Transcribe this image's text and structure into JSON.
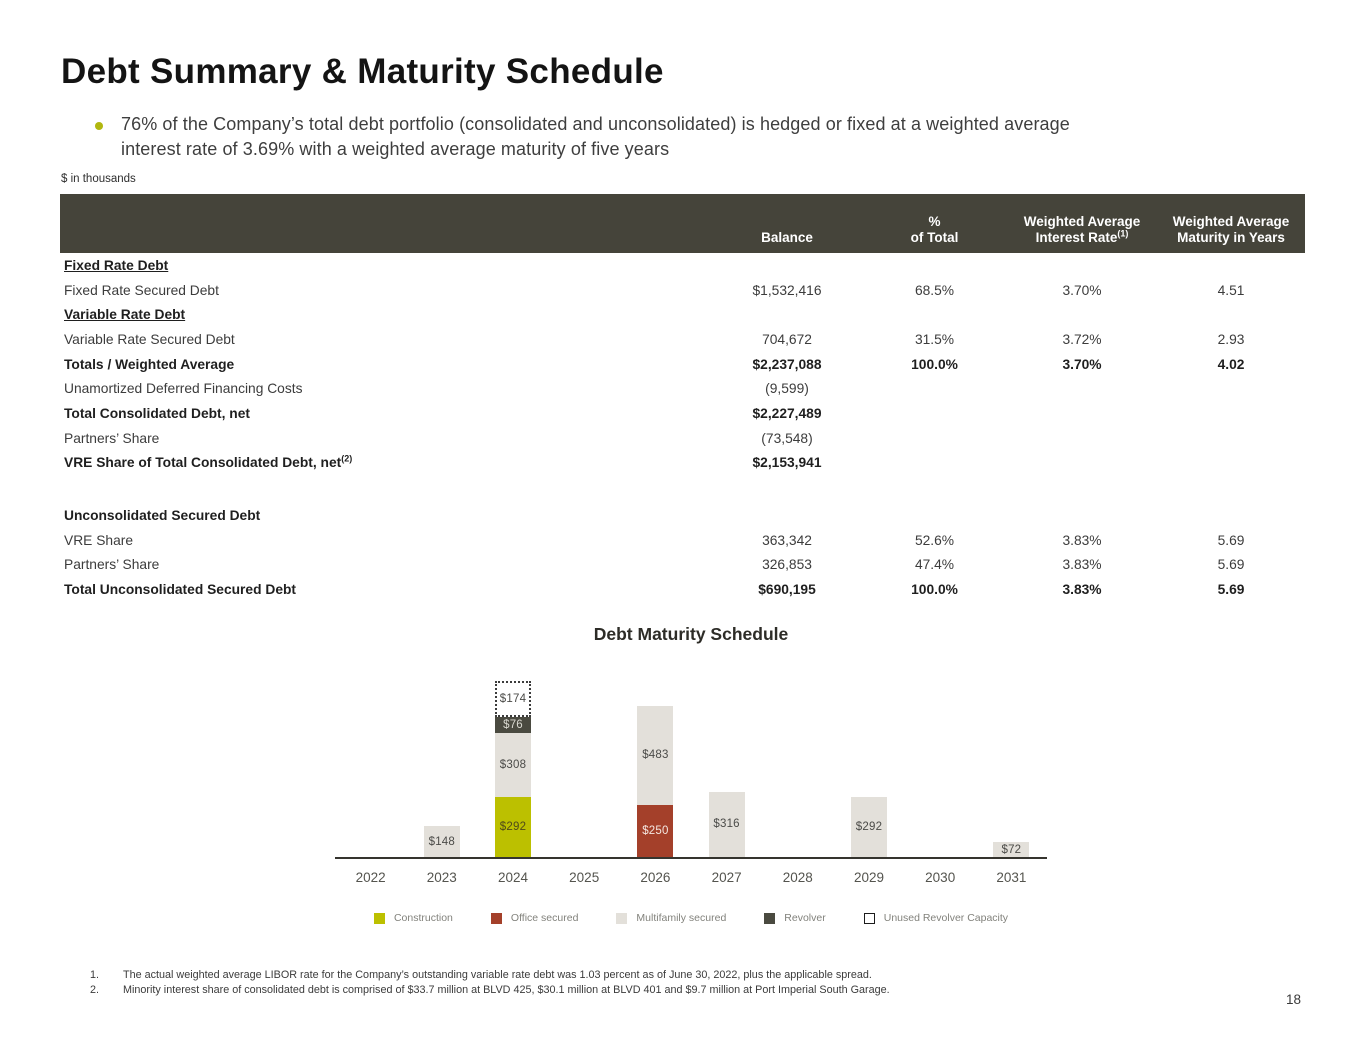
{
  "page": {
    "title": "Debt Summary & Maturity Schedule",
    "bullet_lines": [
      "76% of the Company’s total debt portfolio (consolidated and unconsolidated) is hedged or fixed at a weighted average",
      "interest rate of 3.69% with a weighted average maturity of five years"
    ],
    "bullet_color": "#b1b70f",
    "units_note": "$ in thousands",
    "page_number": "18",
    "footnotes": [
      {
        "num": "1.",
        "text": "The actual weighted average LIBOR rate for the Company’s outstanding variable rate debt was 1.03 percent as of June 30, 2022, plus the applicable spread."
      },
      {
        "num": "2.",
        "text": "Minority interest share of consolidated debt is comprised of $33.7 million at BLVD 425, $30.1 million at BLVD 401 and $9.7 million at Port Imperial South Garage."
      }
    ]
  },
  "table": {
    "header_bg_color": "#45443a",
    "header": {
      "balance": "Balance",
      "pct_line1": "%",
      "pct_line2": "of Total",
      "rate_line1": "Weighted Average",
      "rate_line2": "Interest Rate",
      "rate_sup": "(1)",
      "maturity_line1": "Weighted Average",
      "maturity_line2": "Maturity in Years"
    },
    "rows": [
      {
        "label": "Fixed Rate Debt",
        "style": "section"
      },
      {
        "label": "Fixed Rate Secured Debt",
        "balance": "$1,532,416",
        "pct": "68.5%",
        "rate": "3.70%",
        "maturity": "4.51",
        "style": "normal"
      },
      {
        "label": "Variable Rate Debt",
        "style": "section"
      },
      {
        "label": "Variable Rate Secured Debt",
        "balance": "704,672",
        "pct": "31.5%",
        "rate": "3.72%",
        "maturity": "2.93",
        "style": "normal"
      },
      {
        "label": "Totals / Weighted Average",
        "balance": "$2,237,088",
        "pct": "100.0%",
        "rate": "3.70%",
        "maturity": "4.02",
        "style": "bold"
      },
      {
        "label": "Unamortized Deferred Financing Costs",
        "balance": "(9,599)",
        "style": "normal"
      },
      {
        "label": "Total Consolidated Debt, net",
        "balance": "$2,227,489",
        "style": "bold"
      },
      {
        "label": "Partners’ Share",
        "balance": "(73,548)",
        "style": "normal"
      },
      {
        "label": "VRE Share of Total Consolidated Debt, net",
        "label_sup": "(2)",
        "balance": "$2,153,941",
        "style": "bold"
      },
      {
        "style": "spacer"
      },
      {
        "label": "Unconsolidated Secured Debt",
        "style": "bold"
      },
      {
        "label": "VRE Share",
        "balance": "363,342",
        "pct": "52.6%",
        "rate": "3.83%",
        "maturity": "5.69",
        "style": "normal"
      },
      {
        "label": "Partners’ Share",
        "balance": "326,853",
        "pct": "47.4%",
        "rate": "3.83%",
        "maturity": "5.69",
        "style": "normal"
      },
      {
        "label": "Total Unconsolidated Secured Debt",
        "balance": "$690,195",
        "pct": "100.0%",
        "rate": "3.83%",
        "maturity": "5.69",
        "style": "bold"
      }
    ]
  },
  "chart_data": {
    "type": "bar",
    "stacked": true,
    "title": "Debt Maturity Schedule",
    "categories": [
      "2022",
      "2023",
      "2024",
      "2025",
      "2026",
      "2027",
      "2028",
      "2029",
      "2030",
      "2031"
    ],
    "series": [
      {
        "name": "Construction",
        "color": "#bcc000",
        "label_color": "#4f4a1a",
        "values": [
          0,
          0,
          292,
          0,
          0,
          0,
          0,
          0,
          0,
          0
        ]
      },
      {
        "name": "Office secured",
        "color": "#a4402a",
        "label_color": "#f4e7e1",
        "values": [
          0,
          0,
          0,
          0,
          250,
          0,
          0,
          0,
          0,
          0
        ]
      },
      {
        "name": "Multifamily secured",
        "color": "#e3e0da",
        "label_color": "#4b4b48",
        "values": [
          0,
          148,
          308,
          0,
          483,
          316,
          0,
          292,
          0,
          72
        ]
      },
      {
        "name": "Revolver",
        "color": "#4a4a40",
        "label_color": "#d9d8d0",
        "values": [
          0,
          0,
          76,
          0,
          0,
          0,
          0,
          0,
          0,
          0
        ]
      },
      {
        "name": "Unused Revolver Capacity",
        "color": "#ffffff",
        "label_color": "#4b4b48",
        "dotted": true,
        "values": [
          0,
          0,
          174,
          0,
          0,
          0,
          0,
          0,
          0,
          0
        ]
      }
    ],
    "value_prefix": "$",
    "ylim": [
      0,
      900
    ],
    "xlabel": "",
    "ylabel": "",
    "grid": false,
    "legend_position": "bottom",
    "axis_color": "#35342e"
  }
}
